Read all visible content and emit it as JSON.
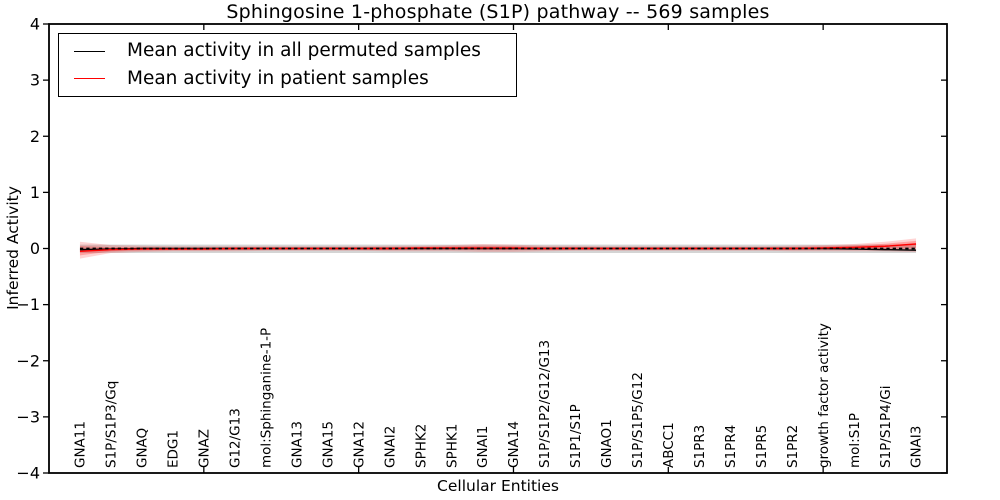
{
  "chart_data": {
    "type": "line",
    "title": "Sphingosine 1-phosphate (S1P) pathway -- 569 samples",
    "xlabel": "Cellular Entities",
    "ylabel": "Inferred Activity",
    "sample_count": "569",
    "grid": false,
    "legend_position": "upper left",
    "xlim": [
      0,
      29
    ],
    "ylim": [
      -4,
      4
    ],
    "yticks": {
      "values": [
        4,
        3,
        2,
        1,
        0,
        -1,
        -2,
        -3,
        -4
      ],
      "labels": [
        "4",
        "3",
        "2",
        "1",
        "0",
        "−1",
        "−2",
        "−3",
        "−4"
      ]
    },
    "xtick_mark_positions": [
      5,
      10,
      15,
      20,
      25
    ],
    "zero_line": {
      "value": 0,
      "style": "dotted",
      "color": "#000000"
    },
    "categories": [
      "GNA11",
      "S1P/S1P3/Gq",
      "GNAQ",
      "EDG1",
      "GNAZ",
      "G12/G13",
      "mol:Sphinganine-1-P",
      "GNA13",
      "GNA15",
      "GNA12",
      "GNAI2",
      "SPHK2",
      "SPHK1",
      "GNAI1",
      "GNA14",
      "S1P/S1P2/G12/G13",
      "S1P1/S1P",
      "GNAO1",
      "S1P/S1P5/G12",
      "ABCC1",
      "S1PR3",
      "S1PR4",
      "S1PR5",
      "S1PR2",
      "growth factor activity",
      "mol:S1P",
      "S1P/S1P4/Gi",
      "GNAI3"
    ],
    "x": [
      1,
      2,
      3,
      4,
      5,
      6,
      7,
      8,
      9,
      10,
      11,
      12,
      13,
      14,
      15,
      16,
      17,
      18,
      19,
      20,
      21,
      22,
      23,
      24,
      25,
      26,
      27,
      28
    ],
    "series": [
      {
        "name": "Mean activity in all permuted samples",
        "color": "#000000",
        "values": [
          -0.02,
          -0.01,
          0,
          0,
          0,
          0,
          0,
          0,
          0,
          0,
          0,
          0,
          0,
          0,
          0,
          0,
          0,
          0,
          0,
          0,
          0,
          0,
          0,
          0,
          0,
          -0.01,
          -0.02,
          -0.03
        ],
        "band": {
          "color": "#c9c9c9",
          "upper": [
            0.07,
            0.07,
            0.07,
            0.07,
            0.07,
            0.07,
            0.07,
            0.07,
            0.07,
            0.07,
            0.07,
            0.07,
            0.07,
            0.07,
            0.07,
            0.07,
            0.07,
            0.07,
            0.07,
            0.07,
            0.07,
            0.07,
            0.07,
            0.07,
            0.07,
            0.07,
            0.07,
            0.07
          ],
          "lower": [
            -0.08,
            -0.08,
            -0.08,
            -0.08,
            -0.08,
            -0.08,
            -0.08,
            -0.08,
            -0.08,
            -0.08,
            -0.08,
            -0.08,
            -0.08,
            -0.08,
            -0.08,
            -0.08,
            -0.08,
            -0.08,
            -0.08,
            -0.08,
            -0.08,
            -0.08,
            -0.08,
            -0.08,
            -0.08,
            -0.08,
            -0.08,
            -0.08
          ]
        }
      },
      {
        "name": "Mean activity in patient samples",
        "color": "#ff0000",
        "values": [
          -0.05,
          -0.02,
          -0.01,
          -0.01,
          -0.01,
          0,
          0,
          0,
          0,
          0,
          0,
          0.01,
          0.01,
          0.01,
          0.01,
          0,
          0,
          0,
          0,
          0,
          0,
          0,
          0,
          0,
          0.01,
          0.02,
          0.04,
          0.08
        ],
        "band": {
          "color": "#ff0000",
          "upper": [
            0.12,
            0.06,
            0.05,
            0.04,
            0.04,
            0.04,
            0.04,
            0.04,
            0.04,
            0.04,
            0.05,
            0.05,
            0.06,
            0.08,
            0.07,
            0.05,
            0.05,
            0.04,
            0.04,
            0.04,
            0.04,
            0.04,
            0.04,
            0.05,
            0.06,
            0.08,
            0.12,
            0.18
          ],
          "lower": [
            -0.18,
            -0.08,
            -0.06,
            -0.05,
            -0.05,
            -0.05,
            -0.04,
            -0.04,
            -0.04,
            -0.04,
            -0.05,
            -0.05,
            -0.05,
            -0.06,
            -0.06,
            -0.05,
            -0.04,
            -0.04,
            -0.04,
            -0.04,
            -0.04,
            -0.04,
            -0.04,
            -0.05,
            -0.05,
            -0.05,
            -0.05,
            -0.06
          ]
        }
      }
    ]
  }
}
